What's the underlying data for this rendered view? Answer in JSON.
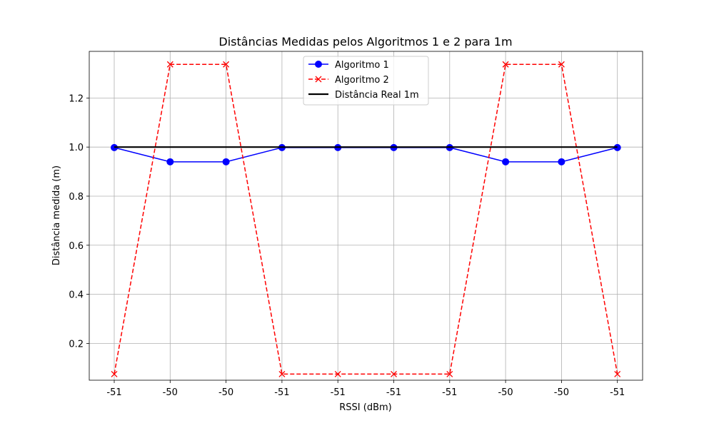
{
  "chart_data": {
    "type": "line",
    "title": "Distâncias Medidas pelos Algoritmos 1 e 2 para 1m",
    "xlabel": "RSSI (dBm)",
    "ylabel": "Distância medida (m)",
    "categories": [
      "-51",
      "-50",
      "-50",
      "-51",
      "-51",
      "-51",
      "-51",
      "-50",
      "-50",
      "-51"
    ],
    "ylim": [
      0.05,
      1.39
    ],
    "yticks": [
      0.2,
      0.4,
      0.6,
      0.8,
      1.0,
      1.2
    ],
    "ytick_labels": [
      "0.2",
      "0.4",
      "0.6",
      "0.8",
      "1.0",
      "1.2"
    ],
    "grid": true,
    "legend_position": "top-center",
    "series": [
      {
        "name": "Algoritmo 1",
        "values": [
          0.998,
          0.94,
          0.94,
          0.998,
          0.998,
          0.998,
          0.998,
          0.94,
          0.94,
          0.998
        ],
        "color": "#0000ff",
        "line_style": "solid",
        "marker": "circle"
      },
      {
        "name": "Algoritmo 2",
        "values": [
          0.075,
          1.337,
          1.337,
          0.075,
          0.075,
          0.075,
          0.075,
          1.337,
          1.337,
          0.075
        ],
        "color": "#ff0000",
        "line_style": "dashed",
        "marker": "x"
      },
      {
        "name": "Distância Real 1m",
        "values": [
          1.0,
          1.0,
          1.0,
          1.0,
          1.0,
          1.0,
          1.0,
          1.0,
          1.0,
          1.0
        ],
        "color": "#000000",
        "line_style": "solid",
        "marker": "none"
      }
    ]
  }
}
